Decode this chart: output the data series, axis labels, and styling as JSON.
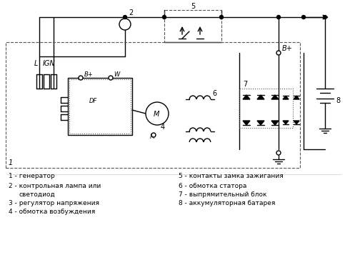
{
  "title": "",
  "background_color": "#ffffff",
  "line_color": "#000000",
  "dashed_color": "#555555",
  "fig_width": 4.9,
  "fig_height": 3.64,
  "legend": [
    "1 - генератор",
    "2 - контрольная лампа или\n    светодиод",
    "3 - регулятор напряжения",
    "4 - обмотка возбуждения",
    "5 - контакты замка зажигания",
    "6 - обмотка статора",
    "7 - выпрямительный блок",
    "8 - аккумуляторная батарея"
  ]
}
